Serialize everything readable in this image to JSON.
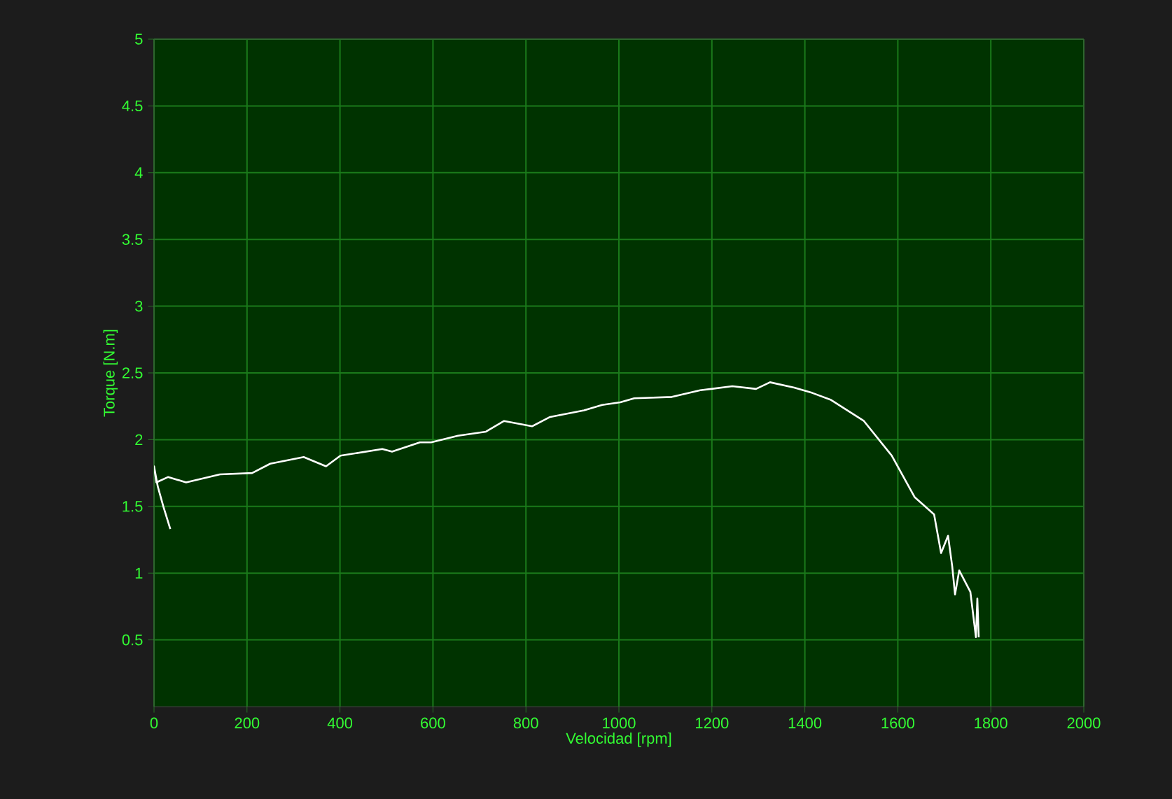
{
  "chart_data": {
    "type": "line",
    "xlabel": "Velocidad [rpm]",
    "ylabel": "Torque [N.m]",
    "xlim": [
      0,
      2000
    ],
    "ylim": [
      0,
      5
    ],
    "xticks": [
      0,
      200,
      400,
      600,
      800,
      1000,
      1200,
      1400,
      1600,
      1800,
      2000
    ],
    "yticks": [
      0.5,
      1,
      1.5,
      2,
      2.5,
      3,
      3.5,
      4,
      4.5,
      5
    ],
    "grid": true,
    "marker": "none",
    "line_style": "solid",
    "series": [
      {
        "color": "#ffffff",
        "x": [
          35,
          20,
          8,
          0,
          5,
          30,
          69,
          142,
          211,
          250,
          322,
          370,
          401,
          491,
          512,
          572,
          596,
          654,
          714,
          753,
          813,
          852,
          925,
          964,
          1003,
          1033,
          1114,
          1175,
          1244,
          1295,
          1325,
          1377,
          1416,
          1455,
          1527,
          1587,
          1636,
          1678,
          1693,
          1708,
          1717,
          1723,
          1732,
          1756,
          1768,
          1771,
          1774
        ],
        "values": [
          1.33,
          1.5,
          1.65,
          1.8,
          1.68,
          1.72,
          1.68,
          1.74,
          1.75,
          1.82,
          1.87,
          1.8,
          1.88,
          1.93,
          1.91,
          1.98,
          1.98,
          2.03,
          2.06,
          2.14,
          2.1,
          2.17,
          2.22,
          2.26,
          2.28,
          2.31,
          2.32,
          2.37,
          2.4,
          2.38,
          2.43,
          2.39,
          2.35,
          2.3,
          2.14,
          1.88,
          1.57,
          1.44,
          1.15,
          1.28,
          1.05,
          0.84,
          1.02,
          0.86,
          0.52,
          0.81,
          0.52
        ]
      }
    ]
  }
}
